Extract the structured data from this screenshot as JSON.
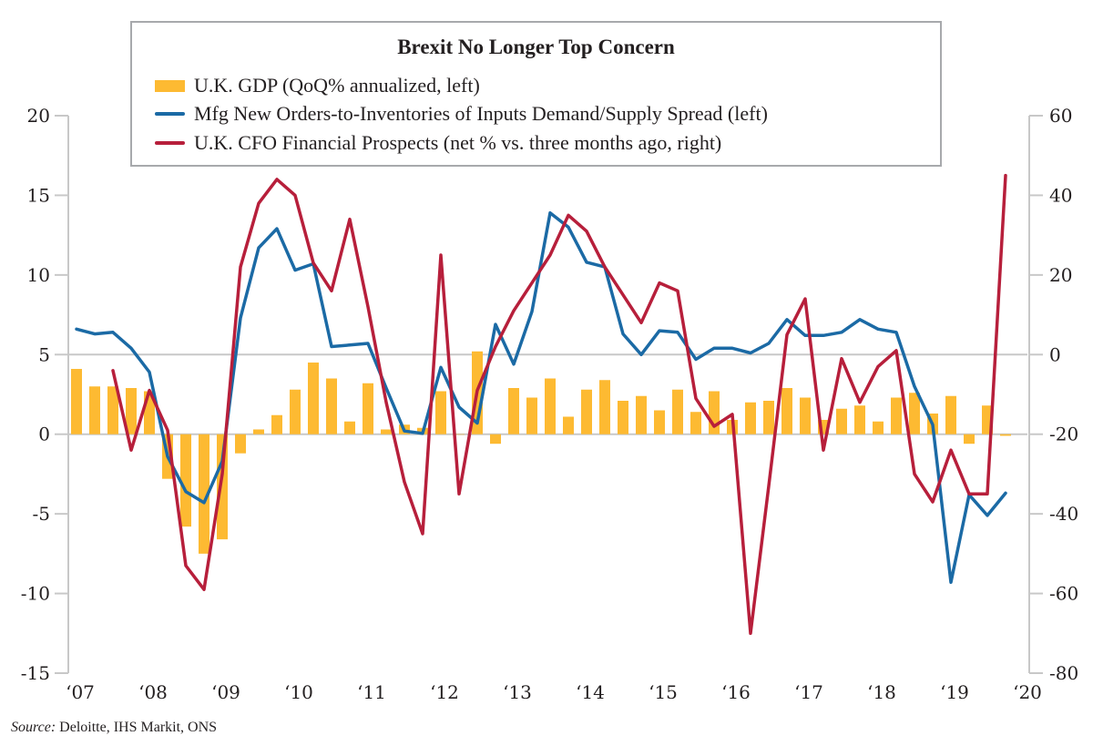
{
  "chart_data": {
    "type": "bar+line",
    "title": "Brexit No Longer Top Concern",
    "legend_position": "top-center",
    "x": {
      "tick_labels": [
        "‘07",
        "‘08",
        "‘09",
        "‘10",
        "‘11",
        "‘12",
        "‘13",
        "‘14",
        "‘15",
        "‘16",
        "‘17",
        "‘18",
        "‘19",
        "‘20"
      ],
      "start": "Q1 2007",
      "frequency": "quarterly"
    },
    "y_left": {
      "ticks": [
        20,
        15,
        10,
        5,
        0,
        -5,
        -10,
        -15
      ],
      "range": [
        -15,
        20
      ]
    },
    "y_right": {
      "ticks": [
        60,
        40,
        20,
        0,
        -20,
        -40,
        -60,
        -80
      ],
      "range": [
        -80,
        60
      ]
    },
    "gridlines_left": [
      5,
      0
    ],
    "series": [
      {
        "name": "U.K. GDP (QoQ% annualized, left)",
        "type": "bar",
        "axis": "left",
        "color": "#FDBA32",
        "start_index": 0,
        "values": [
          4.1,
          3.0,
          3.0,
          2.9,
          2.7,
          -2.8,
          -5.8,
          -7.5,
          -6.6,
          -1.2,
          0.3,
          1.2,
          2.8,
          4.5,
          3.5,
          0.8,
          3.2,
          0.3,
          0.6,
          0.4,
          2.7,
          0.0,
          5.2,
          -0.6,
          2.9,
          2.3,
          3.5,
          1.1,
          2.8,
          3.4,
          2.1,
          2.4,
          1.5,
          2.8,
          1.4,
          2.7,
          0.9,
          2.0,
          2.1,
          2.9,
          2.3,
          0.9,
          1.6,
          1.8,
          0.8,
          2.3,
          2.6,
          1.3,
          2.4,
          -0.6,
          1.8,
          -0.1
        ]
      },
      {
        "name": "Mfg New Orders-to-Inventories of Inputs Demand/Supply Spread (left)",
        "type": "line",
        "axis": "left",
        "color": "#1B6AA5",
        "start_index": 0,
        "values": [
          6.6,
          6.3,
          6.4,
          5.4,
          3.9,
          -1.4,
          -3.6,
          -4.3,
          -1.7,
          7.3,
          11.7,
          12.9,
          10.3,
          10.7,
          5.5,
          5.6,
          5.7,
          2.9,
          0.2,
          0.05,
          4.2,
          1.7,
          0.7,
          6.9,
          4.4,
          7.7,
          13.9,
          13.0,
          10.8,
          10.5,
          6.3,
          5.0,
          6.5,
          6.4,
          4.7,
          5.4,
          5.4,
          5.1,
          5.7,
          7.2,
          6.2,
          6.2,
          6.4,
          7.2,
          6.6,
          6.4,
          3.0,
          0.6,
          -9.3,
          -3.8,
          -5.1,
          -3.7
        ]
      },
      {
        "name": "U.K. CFO Financial Prospects (net % vs. three months ago, right)",
        "type": "line",
        "axis": "right",
        "color": "#B71F3B",
        "start_index": 2,
        "values": [
          -4,
          -24,
          -9,
          -19,
          -53,
          -59,
          -30,
          22,
          38,
          44,
          40,
          23,
          16,
          34,
          12,
          -12,
          -32,
          -45,
          25,
          -35,
          -9,
          2,
          11,
          18,
          25,
          35,
          31,
          22,
          15,
          8,
          18,
          16,
          -11,
          -18,
          -15,
          -70,
          -33,
          5,
          14,
          -24,
          -1,
          -12,
          -3,
          1,
          -30,
          -37,
          -24,
          -35,
          -35,
          45
        ]
      }
    ]
  },
  "legend": {
    "title": "Brexit No Longer Top Concern",
    "items": [
      {
        "label": "U.K. GDP (QoQ% annualized, left)",
        "color": "#FDBA32",
        "kind": "bar"
      },
      {
        "label": "Mfg New Orders-to-Inventories of Inputs Demand/Supply Spread (left)",
        "color": "#1B6AA5",
        "kind": "line"
      },
      {
        "label": "U.K. CFO Financial Prospects (net % vs. three months ago, right)",
        "color": "#B71F3B",
        "kind": "line"
      }
    ]
  },
  "source": {
    "prefix": "Source:",
    "text": " Deloitte, IHS Markit, ONS"
  },
  "colors": {
    "axis": "#c8c8c8",
    "grid": "#c8c8c8",
    "legend_border": "#a7a9ac"
  }
}
